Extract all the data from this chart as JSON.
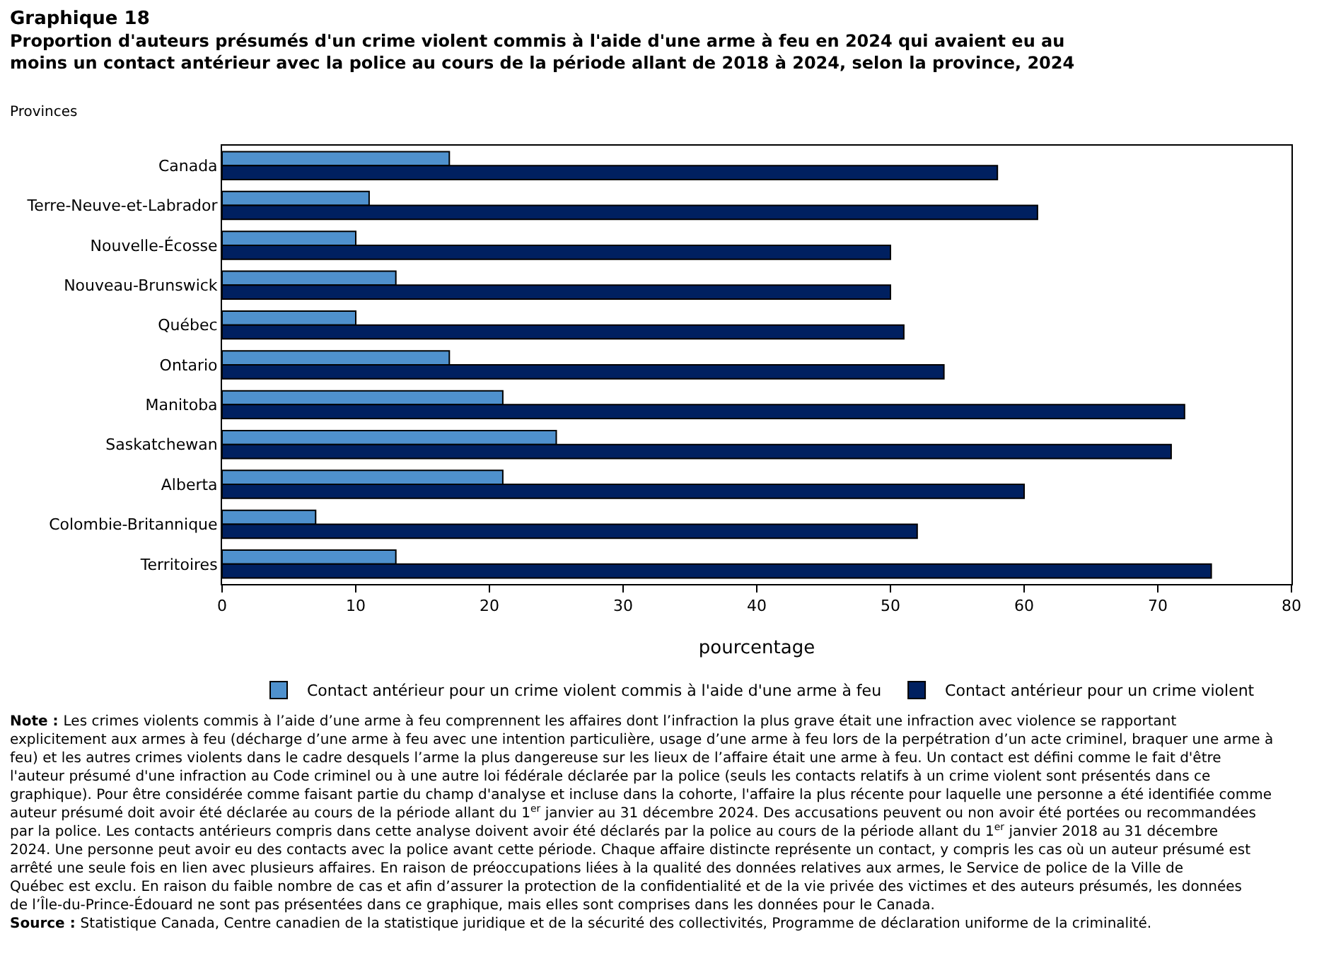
{
  "chart_data": {
    "type": "bar",
    "orientation": "horizontal",
    "title": "Graphique 18",
    "subtitle": "Proportion d'auteurs présumés d'un crime violent commis à l'aide d'une arme à feu en 2024 qui avaient eu au moins un contact antérieur avec la police au cours de la période allant de 2018 à 2024, selon la province, 2024",
    "ylabel": "Provinces",
    "xlabel": "pourcentage",
    "categories": [
      "Canada",
      "Terre-Neuve-et-Labrador",
      "Nouvelle-Écosse",
      "Nouveau-Brunswick",
      "Québec",
      "Ontario",
      "Manitoba",
      "Saskatchewan",
      "Alberta",
      "Colombie-Britannique",
      "Territoires"
    ],
    "series": [
      {
        "name": "Contact antérieur pour un crime violent commis à l'aide d'une arme à feu",
        "color": "#4f91cd",
        "values": [
          17,
          11,
          10,
          13,
          10,
          17,
          21,
          25,
          21,
          7,
          13
        ]
      },
      {
        "name": "Contact antérieur pour un crime violent",
        "color": "#002060",
        "values": [
          58,
          61,
          50,
          50,
          51,
          54,
          72,
          71,
          60,
          52,
          74
        ]
      }
    ],
    "xlim": [
      0,
      80
    ],
    "xticks": [
      0,
      10,
      20,
      30,
      40,
      50,
      60,
      70,
      80
    ],
    "grid": false,
    "legend": "bottom",
    "annotations": [
      "Note : Les crimes violents commis à l’aide d’une arme à feu comprennent les affaires dont l’infraction la plus grave était une infraction avec violence se rapportant explicitement aux armes à feu (décharge d’une arme à feu avec une intention particulière, usage d’une arme à feu lors de la perpétration d’un acte criminel, braquer une arme à feu) et les autres crimes violents dans le cadre desquels l’arme la plus dangereuse sur les lieux de l’affaire était une arme à feu. Un contact est défini comme le fait d'être l'auteur présumé d'une infraction au Code criminel ou à une autre loi fédérale déclarée par la police (seuls les contacts relatifs à un crime violent sont présentés dans ce graphique). Pour être considérée comme faisant partie du champ d'analyse et incluse dans la cohorte, l'affaire la plus récente pour laquelle une personne a été identifiée comme auteur présumé doit avoir été déclarée au cours de la période allant du 1$^{er}$ janvier au 31 décembre 2024. Des accusations peuvent ou non avoir été portées ou recommandées par la police. Les contacts antérieurs compris dans cette analyse doivent avoir été déclarés par la police au cours de la période allant du 1$^{er}$ janvier 2018 au 31 décembre 2024. Une personne peut avoir eu des contacts avec la police avant cette période. Chaque affaire distincte représente un contact, y compris les cas où un auteur présumé est arrêté une seule fois en lien avec plusieurs affaires. En raison de préoccupations liées à la qualité des données relatives aux armes, le Service de police de la Ville de Québec est exclu. En raison du faible nombre de cas et afin d’assurer la protection de la confidentialité et de la vie privée des victimes et des auteurs présumés, les données de l’Île-du-Prince-Édouard ne sont pas présentées dans ce graphique, mais elles sont comprises dans les données pour le Canada.",
      "Source : Statistique Canada, Centre canadien de la statistique juridique et de la sécurité des collectivités, Programme de déclaration uniforme de la criminalité."
    ]
  }
}
